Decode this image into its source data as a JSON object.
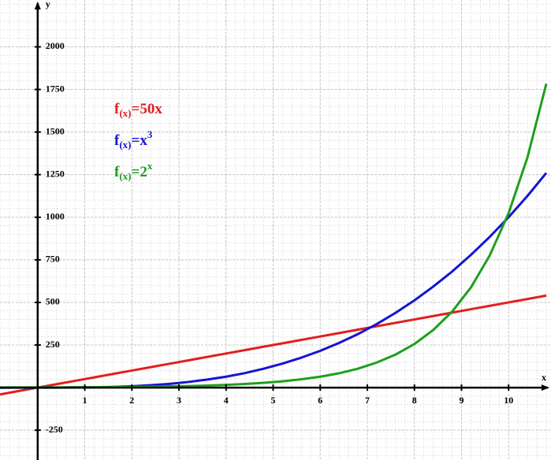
{
  "chart_data": {
    "type": "line",
    "x_label": "x",
    "y_label": "y",
    "x": [
      -0.8,
      -0.4,
      0,
      0.4,
      0.8,
      1.2,
      1.6,
      2,
      2.4,
      2.8,
      3.2,
      3.6,
      4,
      4.4,
      4.8,
      5.2,
      5.6,
      6,
      6.4,
      6.8,
      7.2,
      7.6,
      8,
      8.4,
      8.8,
      9.2,
      9.6,
      10,
      10.4,
      10.8
    ],
    "series": [
      {
        "name": "f(x)=50x",
        "color": "#e31e1e",
        "values": [
          -40,
          -20,
          0,
          20,
          40,
          60,
          80,
          100,
          120,
          140,
          160,
          180,
          200,
          220,
          240,
          260,
          280,
          300,
          320,
          340,
          360,
          380,
          400,
          420,
          440,
          460,
          480,
          500,
          520,
          540
        ]
      },
      {
        "name": "f(x)=x3",
        "color": "#1414d2",
        "values": [
          -1,
          0,
          0,
          0,
          1,
          2,
          4,
          8,
          14,
          22,
          33,
          47,
          64,
          85,
          111,
          141,
          176,
          216,
          262,
          314,
          373,
          439,
          512,
          593,
          681,
          779,
          885,
          1000,
          1125,
          1260
        ]
      },
      {
        "name": "f(x)=2x",
        "color": "#1f9e1f",
        "values": [
          1,
          1,
          1,
          1,
          2,
          2,
          3,
          4,
          5,
          7,
          9,
          12,
          16,
          21,
          28,
          37,
          49,
          64,
          84,
          111,
          147,
          194,
          256,
          338,
          446,
          588,
          776,
          1024,
          1351,
          1783
        ]
      }
    ],
    "xlim": [
      -0.8,
      10.9
    ],
    "ylim": [
      -425,
      2275
    ],
    "xticks": [
      1,
      2,
      3,
      4,
      5,
      6,
      7,
      8,
      9,
      10
    ],
    "yticks": [
      -250,
      250,
      500,
      750,
      1000,
      1250,
      1500,
      1750,
      2000
    ],
    "grid": true
  }
}
